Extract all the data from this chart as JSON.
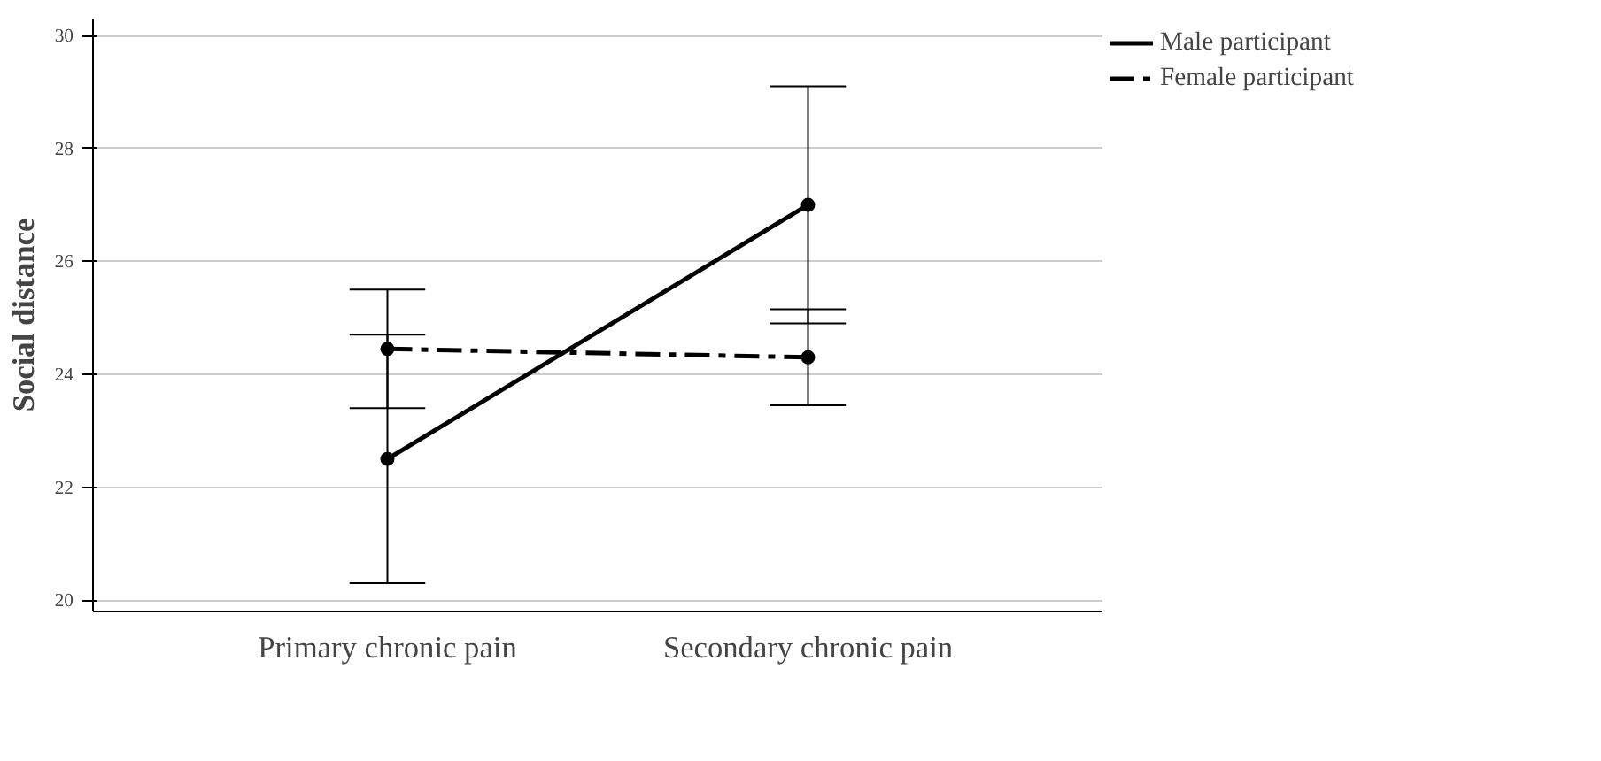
{
  "chart_data": {
    "type": "line",
    "ylabel": "Social distance",
    "categories": [
      "Primary chronic pain",
      "Secondary chronic pain"
    ],
    "series": [
      {
        "name": "Male participant",
        "color": "#000000",
        "line_style": "solid",
        "values": [
          22.5,
          27.0
        ],
        "errors": [
          [
            20.3,
            24.7
          ],
          [
            24.9,
            29.1
          ]
        ]
      },
      {
        "name": "Female participant",
        "color": "#000000",
        "line_style": "dashdot",
        "values": [
          24.45,
          24.3
        ],
        "errors": [
          [
            23.4,
            25.5
          ],
          [
            23.45,
            25.15
          ]
        ]
      }
    ],
    "ylim": [
      19.8,
      30.3
    ],
    "yticks": [
      20,
      22,
      24,
      26,
      28,
      30
    ],
    "grid": "y",
    "legend": "top right",
    "marker": "circle"
  }
}
